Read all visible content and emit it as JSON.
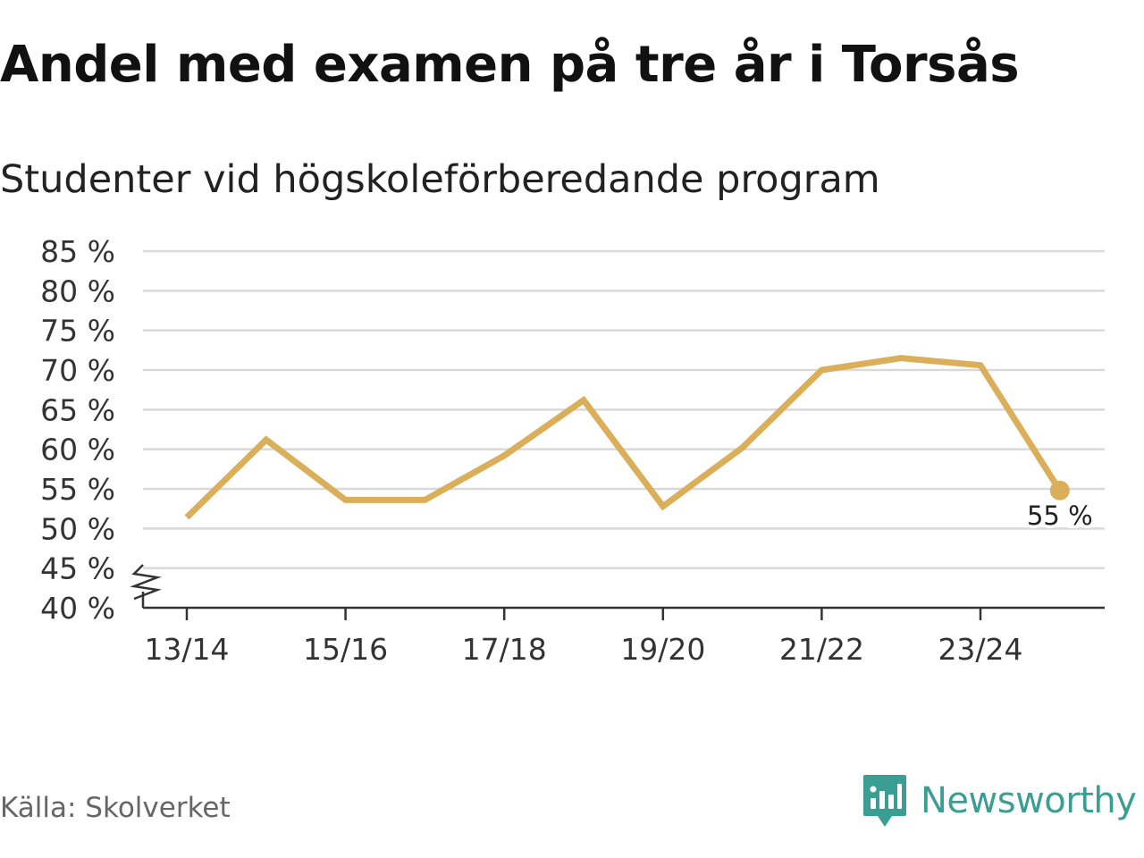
{
  "title": "Andel med examen på tre år i Torsås",
  "subtitle": "Studenter vid högskoleförberedande program",
  "source": "Källa: Skolverket",
  "brand": {
    "name": "Newsworthy",
    "icon": "newsworthy-logo-icon",
    "color": "#3a9e95"
  },
  "colors": {
    "line": "#dbae5a",
    "grid": "#d9d9d9",
    "axis": "#333333"
  },
  "chart_data": {
    "type": "line",
    "x": [
      "13/14",
      "14/15",
      "15/16",
      "16/17",
      "17/18",
      "18/19",
      "19/20",
      "20/21",
      "21/22",
      "22/23",
      "23/24",
      "24/25"
    ],
    "series": [
      {
        "values": [
          51.4,
          61.2,
          53.6,
          53.6,
          59.2,
          66.2,
          52.8,
          60.2,
          70.0,
          71.5,
          70.6,
          54.8
        ]
      }
    ],
    "x_tick_labels": [
      "13/14",
      "15/16",
      "17/18",
      "19/20",
      "21/22",
      "23/24"
    ],
    "y_ticks": [
      40,
      45,
      50,
      55,
      60,
      65,
      70,
      75,
      80,
      85
    ],
    "y_tick_labels": [
      "40 %",
      "45 %",
      "50 %",
      "55 %",
      "60 %",
      "65 %",
      "70 %",
      "75 %",
      "80 %",
      "85 %"
    ],
    "ylim": [
      40,
      85
    ],
    "y_axis_break": true,
    "grid": true,
    "end_label": "55 %"
  }
}
